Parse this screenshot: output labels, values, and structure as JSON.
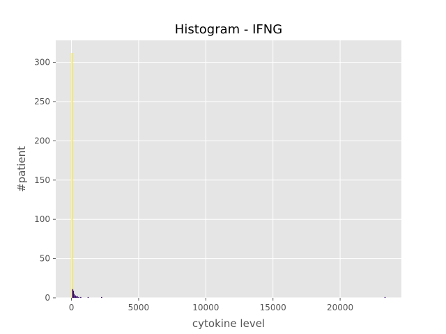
{
  "chart_data": {
    "type": "bar",
    "title": "Histogram - IFNG",
    "xlabel": "cytokine level",
    "ylabel": "#patient",
    "xlim": [
      -1170,
      24560
    ],
    "ylim": [
      0,
      328
    ],
    "xticks": [
      0,
      5000,
      10000,
      15000,
      20000
    ],
    "xtick_labels": [
      "0",
      "5000",
      "10000",
      "15000",
      "20000"
    ],
    "yticks": [
      0,
      50,
      100,
      150,
      200,
      250,
      300
    ],
    "ytick_labels": [
      "0",
      "50",
      "100",
      "150",
      "200",
      "250",
      "300"
    ],
    "grid": true,
    "bins": [
      {
        "x": 0,
        "value": 312,
        "color": "#fde725"
      },
      {
        "x": 50,
        "value": 11,
        "color": "#3b0f70"
      },
      {
        "x": 100,
        "value": 9,
        "color": "#3b0f70"
      },
      {
        "x": 150,
        "value": 5,
        "color": "#3b0f70"
      },
      {
        "x": 250,
        "value": 3,
        "color": "#3b0f70"
      },
      {
        "x": 300,
        "value": 2,
        "color": "#3b0f70"
      },
      {
        "x": 400,
        "value": 2,
        "color": "#3b0f70"
      },
      {
        "x": 500,
        "value": 1,
        "color": "#3b0f70"
      },
      {
        "x": 650,
        "value": 1,
        "color": "#3b0f70"
      },
      {
        "x": 1200,
        "value": 1,
        "color": "#3b0f70"
      },
      {
        "x": 2200,
        "value": 1,
        "color": "#3b0f70"
      },
      {
        "x": 23300,
        "value": 1,
        "color": "#3b0f70"
      }
    ]
  }
}
